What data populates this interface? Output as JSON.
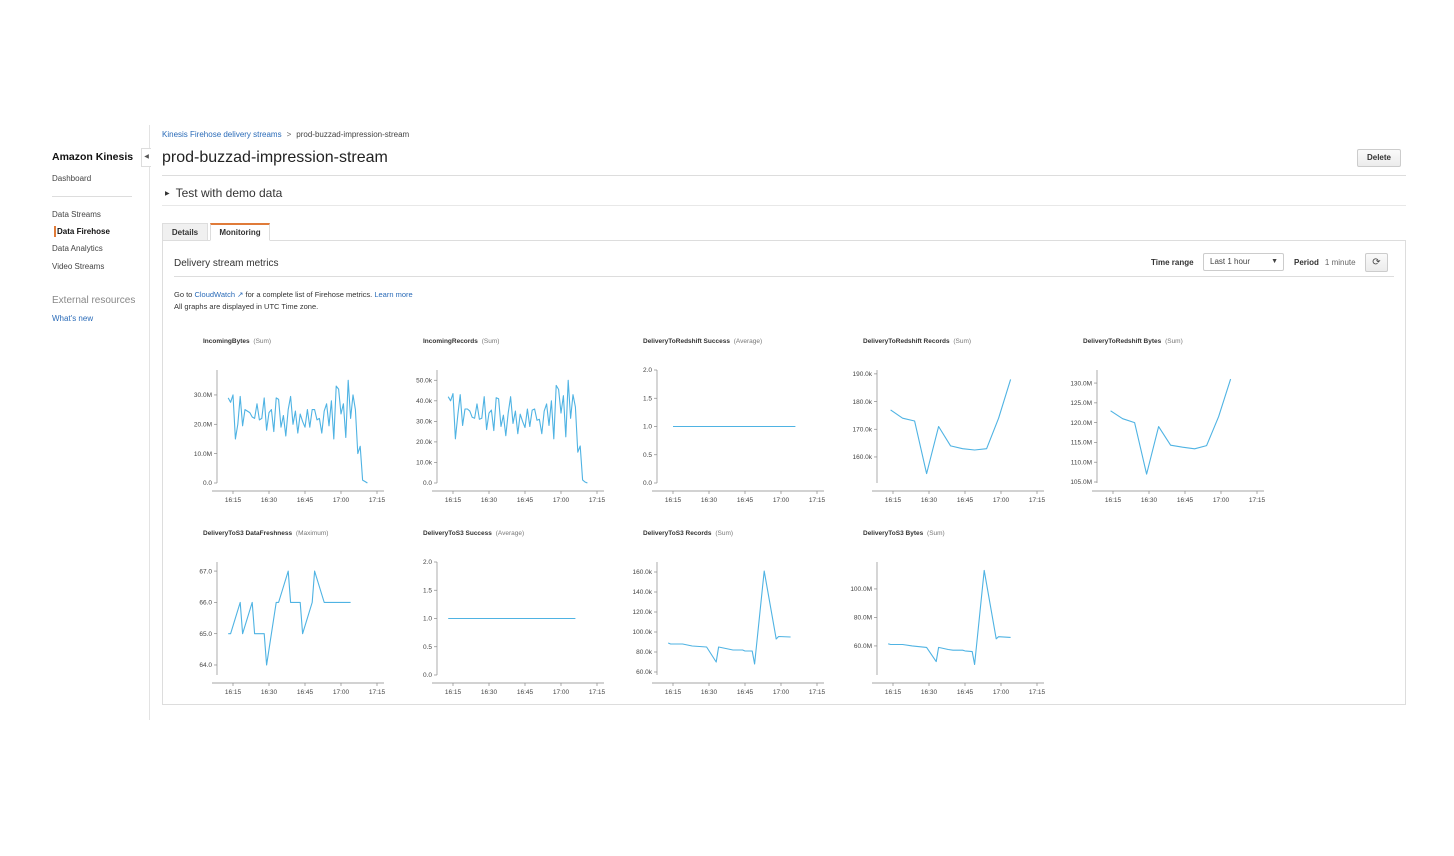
{
  "sidebar": {
    "brand": "Amazon Kinesis",
    "dashboard": "Dashboard",
    "items": [
      {
        "label": "Data Streams"
      },
      {
        "label": "Data Firehose"
      },
      {
        "label": "Data Analytics"
      },
      {
        "label": "Video Streams"
      }
    ],
    "external_heading": "External resources",
    "whats_new": "What's new"
  },
  "breadcrumb": {
    "parent": "Kinesis Firehose delivery streams",
    "separator": ">",
    "current": "prod-buzzad-impression-stream"
  },
  "header": {
    "title": "prod-buzzad-impression-stream",
    "delete_label": "Delete"
  },
  "demo": {
    "label": "Test with demo data"
  },
  "tabs": [
    {
      "label": "Details"
    },
    {
      "label": "Monitoring"
    }
  ],
  "metrics": {
    "title": "Delivery stream metrics",
    "time_range_label": "Time range",
    "time_range_value": "Last 1 hour",
    "period_label": "Period",
    "period_value": "1 minute",
    "goto": "Go to",
    "cloudwatch": "CloudWatch",
    "goto_rest": "for a complete list of Firehose metrics.",
    "learn_more": "Learn more",
    "utc_note": "All graphs are displayed in UTC Time zone."
  },
  "colors": {
    "accent": "#e07b39",
    "link": "#2a6bb8",
    "line": "#4fb3e3"
  },
  "chart_data": [
    {
      "type": "line",
      "title": "IncomingBytes",
      "stat": "(Sum)",
      "x_unit": "minutes after 16:00",
      "xticks": [
        "16:15",
        "16:30",
        "16:45",
        "17:00",
        "17:15"
      ],
      "yticks": [
        "0.0",
        "10.0M",
        "20.0M",
        "30.0M"
      ],
      "ytick_values": [
        0,
        10,
        20,
        30
      ],
      "ylim": [
        0,
        38.5
      ],
      "x_start": 13,
      "x_step": 1,
      "values": [
        29,
        27.5,
        30,
        15,
        20,
        29.5,
        19.5,
        25,
        24.5,
        24,
        22.5,
        22,
        27,
        21.5,
        22,
        29,
        18,
        24,
        25,
        17.5,
        29,
        28.5,
        19,
        23,
        16,
        25,
        29.5,
        20,
        24.5,
        17,
        23.5,
        21,
        19,
        25,
        19,
        25,
        25,
        21.5,
        22,
        17,
        24.5,
        27,
        19.5,
        28,
        15,
        33,
        32,
        23.5,
        27,
        15.5,
        35,
        22,
        30,
        25,
        10,
        12.5,
        1,
        0.5,
        0
      ]
    },
    {
      "type": "line",
      "title": "IncomingRecords",
      "stat": "(Sum)",
      "xticks": [
        "16:15",
        "16:30",
        "16:45",
        "17:00",
        "17:15"
      ],
      "yticks": [
        "0.0",
        "10.0k",
        "20.0k",
        "30.0k",
        "40.0k",
        "50.0k"
      ],
      "ytick_values": [
        0,
        10,
        20,
        30,
        40,
        50
      ],
      "ylim": [
        0,
        55
      ],
      "x_start": 13,
      "x_step": 1,
      "values": [
        42,
        40,
        43.5,
        21.5,
        33,
        43,
        28,
        36,
        36,
        35,
        32,
        31.5,
        38.5,
        31,
        31.5,
        42,
        26,
        34,
        35.5,
        25.5,
        41.5,
        41,
        27.5,
        33,
        23,
        34,
        42,
        29,
        35,
        24,
        33.5,
        30,
        27,
        36,
        27.5,
        35.5,
        36,
        30.5,
        31,
        24,
        35,
        38.5,
        28,
        40,
        21.5,
        47.5,
        45.5,
        34,
        42.5,
        22.5,
        50,
        31.5,
        43,
        37,
        15,
        18,
        1.5,
        0.5,
        0
      ]
    },
    {
      "type": "line",
      "title": "DeliveryToRedshift Success",
      "stat": "(Average)",
      "xticks": [
        "16:15",
        "16:30",
        "16:45",
        "17:00",
        "17:15"
      ],
      "yticks": [
        "0.0",
        "0.5",
        "1.0",
        "1.5",
        "2.0"
      ],
      "ytick_values": [
        0,
        0.5,
        1,
        1.5,
        2
      ],
      "ylim": [
        0,
        2
      ],
      "points": [
        [
          15,
          1
        ],
        [
          66,
          1
        ]
      ]
    },
    {
      "type": "line",
      "title": "DeliveryToRedshift Records",
      "stat": "(Sum)",
      "xticks": [
        "16:15",
        "16:30",
        "16:45",
        "17:00",
        "17:15"
      ],
      "yticks": [
        "160.0k",
        "170.0k",
        "180.0k",
        "190.0k"
      ],
      "ytick_values": [
        160,
        170,
        180,
        190
      ],
      "ylim": [
        150.6,
        191.4
      ],
      "points": [
        [
          14,
          177
        ],
        [
          19,
          174
        ],
        [
          24,
          173
        ],
        [
          29,
          154
        ],
        [
          34,
          171
        ],
        [
          39,
          164
        ],
        [
          44,
          163
        ],
        [
          49,
          162.5
        ],
        [
          54,
          163
        ],
        [
          59,
          174
        ],
        [
          64,
          188
        ]
      ]
    },
    {
      "type": "line",
      "title": "DeliveryToRedshift Bytes",
      "stat": "(Sum)",
      "xticks": [
        "16:15",
        "16:30",
        "16:45",
        "17:00",
        "17:15"
      ],
      "yticks": [
        "105.0M",
        "110.0M",
        "115.0M",
        "120.0M",
        "125.0M",
        "130.0M"
      ],
      "ytick_values": [
        105,
        110,
        115,
        120,
        125,
        130
      ],
      "ylim": [
        104.75,
        133.3
      ],
      "points": [
        [
          14,
          123
        ],
        [
          19,
          121
        ],
        [
          24,
          120
        ],
        [
          29,
          107
        ],
        [
          34,
          119
        ],
        [
          39,
          114.3
        ],
        [
          44,
          113.8
        ],
        [
          49,
          113.4
        ],
        [
          54,
          114.2
        ],
        [
          59,
          121.5
        ],
        [
          64,
          131
        ]
      ]
    },
    {
      "type": "line",
      "title": "DeliveryToS3 DataFreshness",
      "stat": "(Maximum)",
      "xticks": [
        "16:15",
        "16:30",
        "16:45",
        "17:00",
        "17:15"
      ],
      "yticks": [
        "64.0",
        "65.0",
        "66.0",
        "67.0"
      ],
      "ytick_values": [
        64,
        65,
        66,
        67
      ],
      "ylim": [
        63.68,
        67.29
      ],
      "points": [
        [
          13,
          65
        ],
        [
          14,
          65
        ],
        [
          18,
          66
        ],
        [
          19,
          65
        ],
        [
          23,
          66
        ],
        [
          24,
          65
        ],
        [
          28,
          65
        ],
        [
          29,
          64
        ],
        [
          33,
          66
        ],
        [
          34,
          66
        ],
        [
          38,
          67
        ],
        [
          39,
          66
        ],
        [
          43,
          66
        ],
        [
          44,
          65
        ],
        [
          48,
          66
        ],
        [
          49,
          67
        ],
        [
          53,
          66
        ],
        [
          64,
          66
        ]
      ]
    },
    {
      "type": "line",
      "title": "DeliveryToS3 Success",
      "stat": "(Average)",
      "xticks": [
        "16:15",
        "16:30",
        "16:45",
        "17:00",
        "17:15"
      ],
      "yticks": [
        "0.0",
        "0.5",
        "1.0",
        "1.5",
        "2.0"
      ],
      "ytick_values": [
        0,
        0.5,
        1,
        1.5,
        2
      ],
      "ylim": [
        0,
        2
      ],
      "points": [
        [
          13,
          1
        ],
        [
          66,
          1
        ]
      ]
    },
    {
      "type": "line",
      "title": "DeliveryToS3 Records",
      "stat": "(Sum)",
      "xticks": [
        "16:15",
        "16:30",
        "16:45",
        "17:00",
        "17:15"
      ],
      "yticks": [
        "60.0k",
        "80.0k",
        "100.0k",
        "120.0k",
        "140.0k",
        "160.0k"
      ],
      "ytick_values": [
        60,
        80,
        100,
        120,
        140,
        160
      ],
      "ylim": [
        57,
        170
      ],
      "points": [
        [
          13,
          89
        ],
        [
          14,
          88
        ],
        [
          19,
          88
        ],
        [
          23,
          86
        ],
        [
          29,
          85
        ],
        [
          33,
          70
        ],
        [
          34,
          85
        ],
        [
          38,
          83
        ],
        [
          40,
          82
        ],
        [
          44,
          82
        ],
        [
          45,
          81
        ],
        [
          48,
          81
        ],
        [
          49,
          68
        ],
        [
          53,
          161
        ],
        [
          58,
          93
        ],
        [
          59,
          95.5
        ],
        [
          64,
          95
        ]
      ]
    },
    {
      "type": "line",
      "title": "DeliveryToS3 Bytes",
      "stat": "(Sum)",
      "xticks": [
        "16:15",
        "16:30",
        "16:45",
        "17:00",
        "17:15"
      ],
      "yticks": [
        "60.0M",
        "80.0M",
        "100.0M"
      ],
      "ytick_values": [
        60,
        80,
        100
      ],
      "ylim": [
        39.6,
        118.9
      ],
      "points": [
        [
          13,
          61.5
        ],
        [
          14,
          61
        ],
        [
          19,
          61
        ],
        [
          23,
          60
        ],
        [
          29,
          59
        ],
        [
          33,
          49
        ],
        [
          34,
          59
        ],
        [
          38,
          57.5
        ],
        [
          40,
          57
        ],
        [
          44,
          57
        ],
        [
          45,
          56.5
        ],
        [
          48,
          56
        ],
        [
          49,
          47
        ],
        [
          53,
          113
        ],
        [
          58,
          65
        ],
        [
          59,
          66.5
        ],
        [
          64,
          66
        ]
      ]
    }
  ]
}
